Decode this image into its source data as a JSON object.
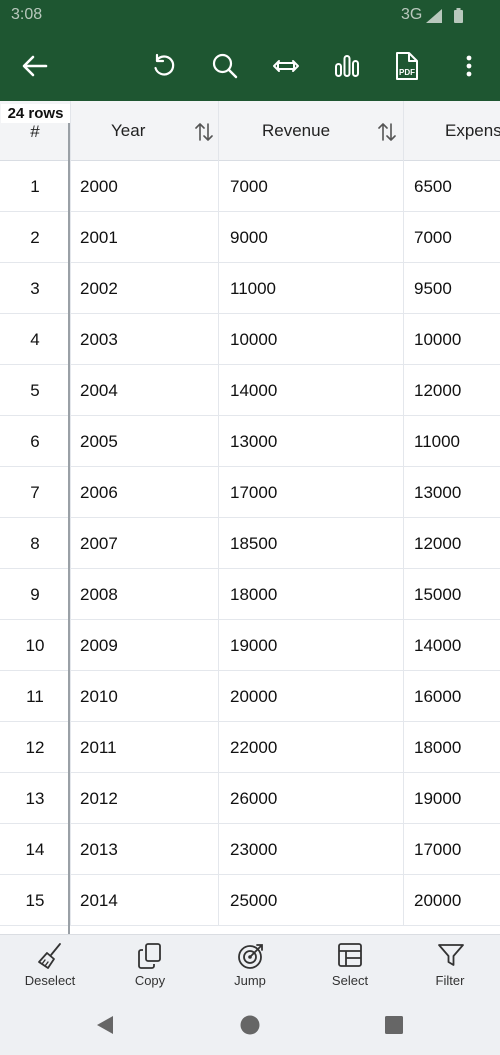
{
  "status_bar": {
    "time": "3:08",
    "network": "3G",
    "icons": [
      "signal-icon",
      "battery-icon"
    ]
  },
  "toolbar": {
    "background_color": "#1e5631",
    "buttons": [
      "back-arrow-icon",
      "undo-icon",
      "search-icon",
      "column-width-icon",
      "chart-icon",
      "pdf-export-icon",
      "more-vert-icon"
    ],
    "pdf_badge": "PDF"
  },
  "table": {
    "row_count_label": "24 rows",
    "columns": [
      "#",
      "Year",
      "Revenue",
      "Expens"
    ],
    "rows": [
      {
        "index": "1",
        "year": "2000",
        "revenue": "7000",
        "expenses": "6500"
      },
      {
        "index": "2",
        "year": "2001",
        "revenue": "9000",
        "expenses": "7000"
      },
      {
        "index": "3",
        "year": "2002",
        "revenue": "11000",
        "expenses": "9500"
      },
      {
        "index": "4",
        "year": "2003",
        "revenue": "10000",
        "expenses": "10000"
      },
      {
        "index": "5",
        "year": "2004",
        "revenue": "14000",
        "expenses": "12000"
      },
      {
        "index": "6",
        "year": "2005",
        "revenue": "13000",
        "expenses": "11000"
      },
      {
        "index": "7",
        "year": "2006",
        "revenue": "17000",
        "expenses": "13000"
      },
      {
        "index": "8",
        "year": "2007",
        "revenue": "18500",
        "expenses": "12000"
      },
      {
        "index": "9",
        "year": "2008",
        "revenue": "18000",
        "expenses": "15000"
      },
      {
        "index": "10",
        "year": "2009",
        "revenue": "19000",
        "expenses": "14000"
      },
      {
        "index": "11",
        "year": "2010",
        "revenue": "20000",
        "expenses": "16000"
      },
      {
        "index": "12",
        "year": "2011",
        "revenue": "22000",
        "expenses": "18000"
      },
      {
        "index": "13",
        "year": "2012",
        "revenue": "26000",
        "expenses": "19000"
      },
      {
        "index": "14",
        "year": "2013",
        "revenue": "23000",
        "expenses": "17000"
      },
      {
        "index": "15",
        "year": "2014",
        "revenue": "25000",
        "expenses": "20000"
      }
    ]
  },
  "action_bar": {
    "actions": [
      {
        "label": "Deselect",
        "icon": "broom-icon"
      },
      {
        "label": "Copy",
        "icon": "copy-icon"
      },
      {
        "label": "Jump",
        "icon": "target-icon"
      },
      {
        "label": "Select",
        "icon": "table-select-icon"
      },
      {
        "label": "Filter",
        "icon": "filter-icon"
      }
    ]
  },
  "nav_bar": {
    "buttons": [
      "back-triangle-icon",
      "home-circle-icon",
      "recents-square-icon"
    ]
  }
}
